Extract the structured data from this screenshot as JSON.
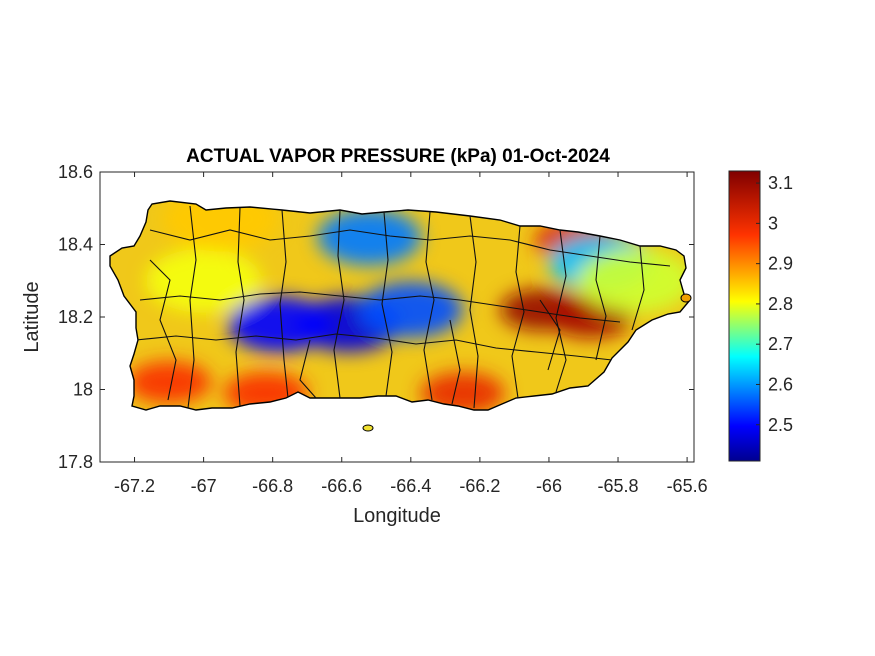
{
  "title": "ACTUAL VAPOR PRESSURE (kPa) 01-Oct-2024",
  "xlabel": "Longitude",
  "ylabel": "Latitude",
  "x_ticks": [
    "-67.2",
    "-67",
    "-66.8",
    "-66.6",
    "-66.4",
    "-66.2",
    "-66",
    "-65.8",
    "-65.6"
  ],
  "y_ticks": [
    "18.6",
    "18.4",
    "18.2",
    "18",
    "17.8"
  ],
  "colorbar_ticks": [
    "3.1",
    "3",
    "2.9",
    "2.8",
    "2.7",
    "2.6",
    "2.5"
  ],
  "chart_data": {
    "type": "heatmap",
    "title": "ACTUAL VAPOR PRESSURE (kPa) 01-Oct-2024",
    "xlabel": "Longitude",
    "ylabel": "Latitude",
    "xlim": [
      -67.3,
      -65.58
    ],
    "ylim": [
      17.8,
      18.6
    ],
    "x_tick_values": [
      -67.2,
      -67,
      -66.8,
      -66.6,
      -66.4,
      -66.2,
      -66,
      -65.8,
      -65.6
    ],
    "y_tick_values": [
      18.6,
      18.4,
      18.2,
      18.0,
      17.8
    ],
    "colorbar": {
      "min": 2.41,
      "max": 3.13,
      "ticks": [
        3.1,
        3.0,
        2.9,
        2.8,
        2.7,
        2.6,
        2.5
      ],
      "colormap": "jet"
    },
    "colors": {
      "low": "#00008f",
      "mid_low": "#00ffff",
      "mid": "#ffff00",
      "mid_high": "#ff6600",
      "high": "#800000"
    },
    "hotspots": [
      {
        "lon": -66.02,
        "lat": 18.22,
        "value": 3.1
      },
      {
        "lon": -65.88,
        "lat": 18.2,
        "value": 3.08
      },
      {
        "lon": -65.92,
        "lat": 18.41,
        "value": 3.02
      },
      {
        "lon": -66.25,
        "lat": 17.99,
        "value": 3.0
      },
      {
        "lon": -67.1,
        "lat": 18.02,
        "value": 2.98
      },
      {
        "lon": -66.82,
        "lat": 17.99,
        "value": 2.98
      },
      {
        "lon": -66.58,
        "lat": 18.18,
        "value": 2.47
      },
      {
        "lon": -66.78,
        "lat": 18.18,
        "value": 2.5
      },
      {
        "lon": -66.4,
        "lat": 18.22,
        "value": 2.55
      },
      {
        "lon": -66.52,
        "lat": 18.42,
        "value": 2.58
      },
      {
        "lon": -65.85,
        "lat": 18.35,
        "value": 2.63
      },
      {
        "lon": -67.0,
        "lat": 18.3,
        "value": 2.8
      },
      {
        "lon": -66.95,
        "lat": 18.47,
        "value": 2.85
      },
      {
        "lon": -65.75,
        "lat": 18.3,
        "value": 2.78
      }
    ]
  }
}
